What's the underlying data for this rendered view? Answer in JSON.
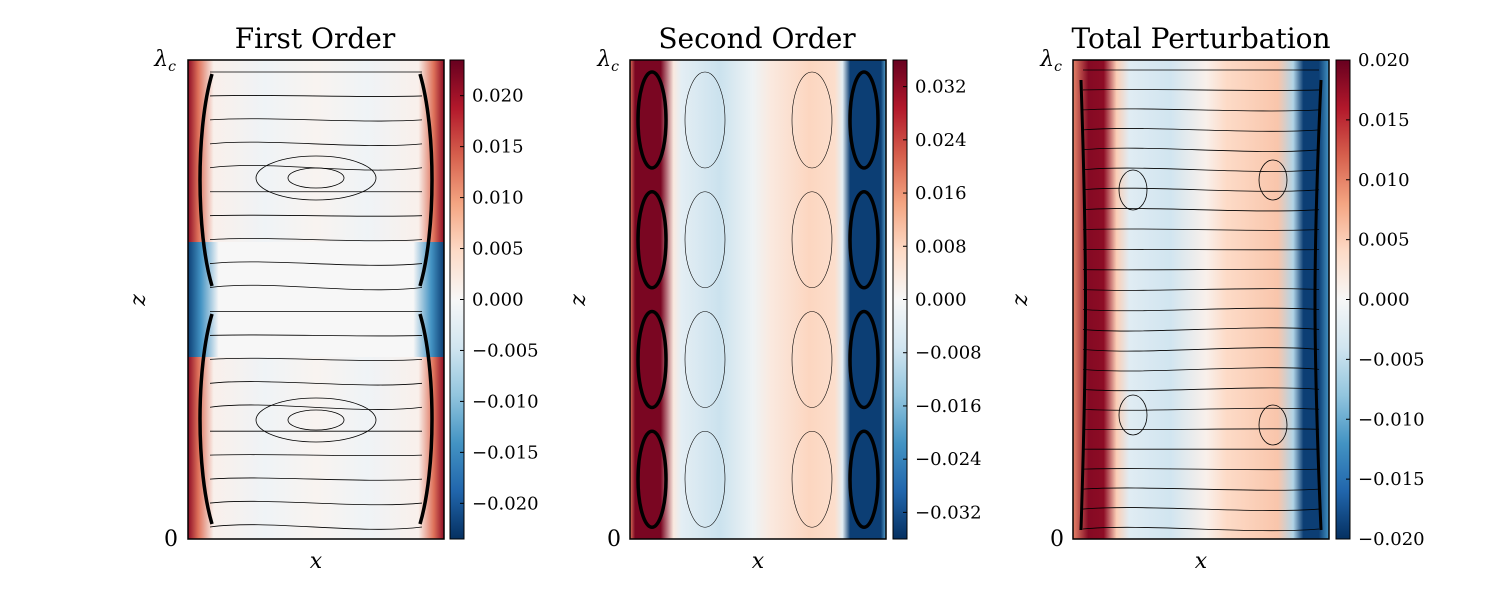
{
  "chart_data": [
    {
      "type": "heatmap",
      "title": "First Order",
      "xlabel": "x",
      "ylabel": "z",
      "ytick_labels": [
        "0",
        "λ_c"
      ],
      "colormap": "RdBu_r",
      "colorbar": {
        "vmin": -0.0235,
        "vmax": 0.0235,
        "ticks": [
          0.02,
          0.015,
          0.01,
          0.005,
          0.0,
          -0.005,
          -0.01,
          -0.015,
          -0.02
        ],
        "tick_labels": [
          "0.020",
          "0.015",
          "0.010",
          "0.005",
          "0.000",
          "−0.005",
          "−0.010",
          "−0.015",
          "−0.020"
        ]
      },
      "field": "antisymmetric in z about mid-height; strong positive at side walls in lower half and upper half edges, weak interior",
      "streamlines": "two stacked counter-rotating cell pairs with horizontal streamlines"
    },
    {
      "type": "heatmap",
      "title": "Second Order",
      "xlabel": "x",
      "ylabel": "z",
      "ytick_labels": [
        "0",
        "λ_c"
      ],
      "colormap": "RdBu_r",
      "colorbar": {
        "vmin": -0.036,
        "vmax": 0.036,
        "ticks": [
          0.032,
          0.024,
          0.016,
          0.008,
          0.0,
          -0.008,
          -0.016,
          -0.024,
          -0.032
        ],
        "tick_labels": [
          "0.032",
          "0.024",
          "0.016",
          "0.008",
          "0.000",
          "−0.008",
          "−0.016",
          "−0.024",
          "−0.032"
        ]
      },
      "field": "z-independent vertical bands: strong red at left wall, blue interior-left, red interior-right, strong blue at right wall",
      "streamlines": "four stacked rolls near each side wall"
    },
    {
      "type": "heatmap",
      "title": "Total Perturbation",
      "xlabel": "x",
      "ylabel": "z",
      "ytick_labels": [
        "0",
        "λ_c"
      ],
      "colormap": "RdBu_r",
      "colorbar": {
        "vmin": -0.02,
        "vmax": 0.02,
        "ticks": [
          0.02,
          0.015,
          0.01,
          0.005,
          0.0,
          -0.005,
          -0.01,
          -0.015,
          -0.02
        ],
        "tick_labels": [
          "0.020",
          "0.015",
          "0.010",
          "0.005",
          "0.000",
          "−0.005",
          "−0.010",
          "−0.015",
          "−0.020"
        ]
      },
      "field": "vertical bands: red near left wall, light blue interior-left, light red interior-right, dark blue near right wall",
      "streamlines": "horizontal streamlines with two small eddies on each side"
    }
  ]
}
